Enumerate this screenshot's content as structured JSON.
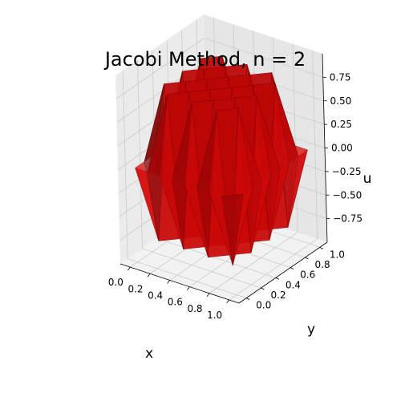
{
  "chart_data": {
    "type": "surface3d",
    "title": "Jacobi Method, n = 2",
    "xlabel": "x",
    "ylabel": "y",
    "zlabel": "u",
    "xlim": [
      -0.1,
      1.1
    ],
    "ylim": [
      -0.1,
      1.1
    ],
    "zlim": [
      -1.0,
      1.0
    ],
    "x_ticks": [
      0.0,
      0.2,
      0.4,
      0.6,
      0.8,
      1.0
    ],
    "x_tick_labels": [
      "0.0",
      "0.2",
      "0.4",
      "0.6",
      "0.8",
      "1.0"
    ],
    "y_ticks": [
      0.0,
      0.2,
      0.4,
      0.6,
      0.8,
      1.0
    ],
    "y_tick_labels": [
      "0.0",
      "0.2",
      "0.4",
      "0.6",
      "0.8",
      "1.0"
    ],
    "z_ticks": [
      -0.75,
      -0.5,
      -0.25,
      0.0,
      0.25,
      0.5,
      0.75
    ],
    "z_tick_labels": [
      "−0.75",
      "−0.50",
      "−0.25",
      "0.00",
      "0.25",
      "0.50",
      "0.75"
    ],
    "grid": true,
    "surface_color": "#ff0000",
    "surface_alpha": 0.75,
    "pane_color": "#f2f2f2",
    "grid_color": "#cccccc",
    "x": [
      0.0,
      0.125,
      0.25,
      0.375,
      0.5,
      0.625,
      0.75,
      0.875,
      1.0
    ],
    "y": [
      0.0,
      0.125,
      0.25,
      0.375,
      0.5,
      0.625,
      0.75,
      0.875,
      1.0
    ],
    "u": [
      [
        0.0,
        0.0,
        0.0,
        0.0,
        0.0,
        0.0,
        0.0,
        0.0,
        0.0
      ],
      [
        0.0,
        -0.8,
        0.8,
        -0.8,
        0.8,
        -0.8,
        0.8,
        -0.8,
        0.0
      ],
      [
        0.0,
        0.8,
        -0.8,
        0.8,
        -0.8,
        0.8,
        -0.8,
        0.8,
        0.0
      ],
      [
        0.0,
        -0.8,
        0.8,
        -0.8,
        0.8,
        -0.8,
        0.8,
        -0.8,
        0.0
      ],
      [
        0.0,
        0.8,
        -0.8,
        0.8,
        -0.8,
        0.8,
        -0.8,
        0.8,
        0.0
      ],
      [
        0.0,
        -0.8,
        0.8,
        -0.8,
        0.8,
        -0.8,
        0.8,
        -0.8,
        0.0
      ],
      [
        0.0,
        0.8,
        -0.8,
        0.8,
        -0.8,
        0.8,
        -0.8,
        0.8,
        0.0
      ],
      [
        0.0,
        -0.8,
        0.8,
        -0.8,
        0.8,
        -0.8,
        0.8,
        -0.8,
        0.0
      ],
      [
        0.0,
        0.0,
        0.0,
        0.0,
        0.0,
        0.0,
        0.0,
        0.0,
        0.0
      ]
    ]
  }
}
